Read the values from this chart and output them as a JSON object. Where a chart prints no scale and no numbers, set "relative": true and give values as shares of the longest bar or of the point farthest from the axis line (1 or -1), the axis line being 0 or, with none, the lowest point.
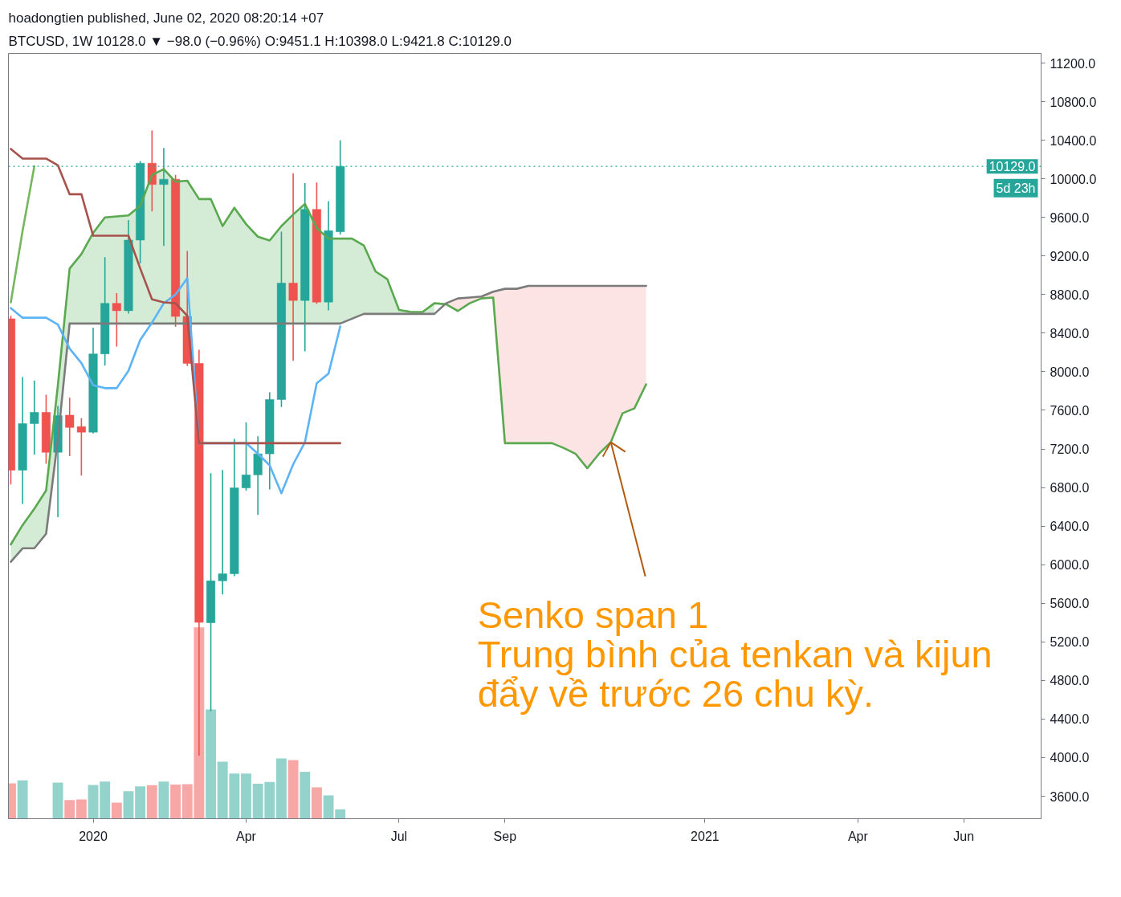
{
  "chart_data": [
    {
      "type": "candlestick",
      "title": "hoadongtien published, June 02, 2020 08:20:14 +07",
      "subtitle": "BTCUSD, 1W  10128.0 ▼ −98.0 (−0.96%) O:9451.1 H:10398.0 L:9421.8 C:10129.0",
      "x": [
        "2019-11-18",
        "2019-11-25",
        "2019-12-02",
        "2019-12-09",
        "2019-12-16",
        "2019-12-23",
        "2019-12-30",
        "2020-01-06",
        "2020-01-13",
        "2020-01-20",
        "2020-01-27",
        "2020-02-03",
        "2020-02-10",
        "2020-02-17",
        "2020-02-24",
        "2020-03-02",
        "2020-03-09",
        "2020-03-16",
        "2020-03-23",
        "2020-03-30",
        "2020-04-06",
        "2020-04-13",
        "2020-04-20",
        "2020-04-27",
        "2020-05-04",
        "2020-05-11",
        "2020-05-18",
        "2020-05-25",
        "2020-06-01"
      ],
      "ohlc": [
        [
          8549,
          8580,
          6832,
          6980
        ],
        [
          6980,
          7945,
          6630,
          7462
        ],
        [
          7462,
          7907,
          7141,
          7579
        ],
        [
          7579,
          7762,
          7046,
          7165
        ],
        [
          7165,
          7646,
          6493,
          7546
        ],
        [
          7550,
          7731,
          7125,
          7422
        ],
        [
          7432,
          7519,
          6923,
          7374
        ],
        [
          7374,
          8457,
          7360,
          8185
        ],
        [
          8185,
          9187,
          8064,
          8709
        ],
        [
          8709,
          8815,
          8262,
          8633
        ],
        [
          8633,
          9572,
          8603,
          9365
        ],
        [
          9365,
          10184,
          9123,
          10162
        ],
        [
          10162,
          10501,
          9663,
          9941
        ],
        [
          9941,
          10319,
          9305,
          9996
        ],
        [
          9996,
          10040,
          8466,
          8573
        ],
        [
          8573,
          9252,
          8059,
          8087
        ],
        [
          8087,
          8229,
          4020,
          5402
        ],
        [
          5398,
          6948,
          4482,
          5833
        ],
        [
          5833,
          6982,
          5691,
          5906
        ],
        [
          5906,
          7304,
          5880,
          6796
        ],
        [
          6796,
          7475,
          6768,
          6931
        ],
        [
          6931,
          7332,
          6517,
          7149
        ],
        [
          7149,
          7787,
          6780,
          7712
        ],
        [
          7712,
          9452,
          7635,
          8919
        ],
        [
          8919,
          10057,
          8113,
          8739
        ],
        [
          8739,
          9955,
          8212,
          9683
        ],
        [
          9683,
          9962,
          8704,
          8722
        ],
        [
          8722,
          9768,
          8637,
          9463
        ],
        [
          9451.1,
          10398.0,
          9421.8,
          10129.0
        ]
      ],
      "colors": [
        "#ef5350",
        "#26a69a",
        "#26a69a",
        "#ef5350",
        "#26a69a",
        "#ef5350",
        "#ef5350",
        "#26a69a",
        "#26a69a",
        "#ef5350",
        "#26a69a",
        "#26a69a",
        "#ef5350",
        "#26a69a",
        "#ef5350",
        "#ef5350",
        "#ef5350",
        "#26a69a",
        "#26a69a",
        "#26a69a",
        "#26a69a",
        "#26a69a",
        "#26a69a",
        "#26a69a",
        "#ef5350",
        "#26a69a",
        "#ef5350",
        "#26a69a",
        "#26a69a"
      ],
      "series": [
        {
          "type": "line",
          "color": "#5aa84f",
          "x": [
            "2019-11-18",
            "2019-11-25",
            "2019-12-02",
            "2019-12-09",
            "2019-12-16",
            "2019-12-23",
            "2019-12-30",
            "2020-01-06",
            "2020-01-13",
            "2020-01-20",
            "2020-01-27",
            "2020-02-03",
            "2020-02-10",
            "2020-02-17",
            "2020-02-24",
            "2020-03-02",
            "2020-03-09",
            "2020-03-16",
            "2020-03-23",
            "2020-03-30",
            "2020-04-06",
            "2020-04-13",
            "2020-04-20",
            "2020-04-27",
            "2020-05-04",
            "2020-05-11",
            "2020-05-18",
            "2020-05-25",
            "2020-06-01",
            "2020-06-08",
            "2020-06-15",
            "2020-06-22",
            "2020-06-29",
            "2020-07-06",
            "2020-07-13",
            "2020-07-20",
            "2020-07-27",
            "2020-08-03",
            "2020-08-10",
            "2020-08-17",
            "2020-08-24",
            "2020-08-31",
            "2020-09-07",
            "2020-09-14",
            "2020-09-21",
            "2020-09-28",
            "2020-10-05",
            "2020-10-12",
            "2020-10-19",
            "2020-10-26",
            "2020-11-02",
            "2020-11-09",
            "2020-11-16",
            "2020-11-23",
            "2020-11-30"
          ],
          "values": [
            6210,
            6410,
            6580,
            6770,
            7860,
            9070,
            9220,
            9440,
            9600,
            9610,
            9620,
            9720,
            10040,
            10100,
            9970,
            9980,
            9790,
            9790,
            9510,
            9700,
            9530,
            9400,
            9360,
            9510,
            9630,
            9740,
            9490,
            9380,
            9380,
            9380,
            9310,
            9040,
            8960,
            8640,
            8620,
            8620,
            8710,
            8700,
            8630,
            8710,
            8760,
            8770,
            7260,
            7260,
            7260,
            7260,
            7260,
            7210,
            7150,
            7000,
            7150,
            7270,
            7570,
            7620,
            7870
          ],
          "lower": [
            6030,
            6170,
            6170,
            6320,
            7300,
            8500,
            8500,
            8500,
            8500,
            8500,
            8500,
            8500,
            8500,
            8500,
            8500,
            8500,
            8500,
            8500,
            8500,
            8500,
            8500,
            8500,
            8500,
            8500,
            8500,
            8500,
            8500,
            8500,
            8500,
            8550,
            8600,
            8600,
            8600,
            8600,
            8600,
            8600,
            8600,
            null,
            null,
            null,
            null,
            null,
            null,
            null,
            null,
            null,
            null,
            null,
            null,
            null,
            null,
            null,
            null,
            null,
            null
          ],
          "upper": [
            6210,
            6410,
            6580,
            6770,
            7860,
            9070,
            9220,
            9440,
            9600,
            9610,
            9620,
            9720,
            10040,
            10100,
            9970,
            9980,
            9790,
            9790,
            9510,
            9700,
            9530,
            9400,
            9360,
            9510,
            9630,
            9740,
            9490,
            9380,
            9380,
            9380,
            9310,
            9040,
            8960,
            8640,
            8620,
            8620,
            8710,
            null,
            null,
            null,
            null,
            null,
            null,
            null,
            null,
            null,
            null,
            null,
            null,
            null,
            null,
            null,
            null,
            null,
            null
          ],
          "colors": [
            "#d4ecd5",
            "#d4ecd5",
            "#d4ecd5",
            "#d4ecd5",
            "#d4ecd5",
            "#d4ecd5",
            "#d4ecd5",
            "#d4ecd5",
            "#d4ecd5",
            "#d4ecd5",
            "#d4ecd5",
            "#d4ecd5",
            "#d4ecd5",
            "#d4ecd5",
            "#d4ecd5",
            "#d4ecd5",
            "#d4ecd5",
            "#d4ecd5",
            "#d4ecd5",
            "#d4ecd5",
            "#d4ecd5",
            "#d4ecd5",
            "#d4ecd5",
            "#d4ecd5",
            "#d4ecd5",
            "#d4ecd5",
            "#d4ecd5",
            "#d4ecd5",
            "#d4ecd5",
            "#d4ecd5",
            "#d4ecd5",
            "#d4ecd5",
            "#d4ecd5",
            "#d4ecd5",
            "#d4ecd5",
            "#d4ecd5",
            "#d4ecd5",
            "#d4ecd5",
            "#d4ecd5",
            "#d4ecd5",
            "#d4ecd5",
            "#d4ecd5",
            "#d4ecd5",
            "#d4ecd5",
            "#d4ecd5",
            "#d4ecd5",
            "#d4ecd5",
            "#d4ecd5",
            "#d4ecd5",
            "#d4ecd5",
            "#d4ecd5",
            "#d4ecd5",
            "#d4ecd5",
            "#d4ecd5",
            "#d4ecd5"
          ]
        },
        {
          "type": "line",
          "color": "#7b7b7b",
          "x": [
            "2019-11-18",
            "2019-11-25",
            "2019-12-02",
            "2019-12-09",
            "2019-12-16",
            "2019-12-23",
            "2019-12-30",
            "2020-01-06",
            "2020-01-13",
            "2020-01-20",
            "2020-01-27",
            "2020-02-03",
            "2020-02-10",
            "2020-02-17",
            "2020-02-24",
            "2020-03-02",
            "2020-03-09",
            "2020-03-16",
            "2020-03-23",
            "2020-03-30",
            "2020-04-06",
            "2020-04-13",
            "2020-04-20",
            "2020-04-27",
            "2020-05-04",
            "2020-05-11",
            "2020-05-18",
            "2020-05-25",
            "2020-06-01",
            "2020-06-08",
            "2020-06-15",
            "2020-06-22",
            "2020-06-29",
            "2020-07-06",
            "2020-07-13",
            "2020-07-20",
            "2020-07-27",
            "2020-08-03",
            "2020-08-10",
            "2020-08-17",
            "2020-08-24",
            "2020-08-31",
            "2020-09-07",
            "2020-09-14",
            "2020-09-21",
            "2020-09-28",
            "2020-10-05",
            "2020-10-12",
            "2020-10-19",
            "2020-10-26",
            "2020-11-02",
            "2020-11-09",
            "2020-11-16",
            "2020-11-23",
            "2020-11-30"
          ],
          "values": [
            6030,
            6170,
            6170,
            6320,
            7300,
            8500,
            8500,
            8500,
            8500,
            8500,
            8500,
            8500,
            8500,
            8500,
            8500,
            8500,
            8500,
            8500,
            8500,
            8500,
            8500,
            8500,
            8500,
            8500,
            8500,
            8500,
            8500,
            8500,
            8500,
            8550,
            8600,
            8600,
            8600,
            8600,
            8600,
            8600,
            8600,
            8710,
            8760,
            8770,
            8780,
            8830,
            8860,
            8860,
            8890,
            8890,
            8890,
            8890,
            8890,
            8890,
            8890,
            8890,
            8890,
            8890,
            8890
          ],
          "lower": [
            null,
            null,
            null,
            null,
            null,
            null,
            null,
            null,
            null,
            null,
            null,
            null,
            null,
            null,
            null,
            null,
            null,
            null,
            null,
            null,
            null,
            null,
            null,
            null,
            null,
            null,
            null,
            null,
            null,
            null,
            null,
            null,
            null,
            null,
            null,
            null,
            null,
            8700,
            8630,
            8710,
            8760,
            8770,
            7260,
            7260,
            7260,
            7260,
            7260,
            7210,
            7150,
            7000,
            7150,
            7270,
            7570,
            7620,
            7870
          ],
          "upper": [
            null,
            null,
            null,
            null,
            null,
            null,
            null,
            null,
            null,
            null,
            null,
            null,
            null,
            null,
            null,
            null,
            null,
            null,
            null,
            null,
            null,
            null,
            null,
            null,
            null,
            null,
            null,
            null,
            null,
            null,
            null,
            null,
            null,
            null,
            null,
            null,
            null,
            8710,
            8760,
            8770,
            8780,
            8830,
            8860,
            8860,
            8890,
            8890,
            8890,
            8890,
            8890,
            8890,
            8890,
            8890,
            8890,
            8890,
            8890
          ],
          "colors": [
            "#fde4e4",
            "#fde4e4",
            "#fde4e4",
            "#fde4e4",
            "#fde4e4",
            "#fde4e4",
            "#fde4e4",
            "#fde4e4",
            "#fde4e4",
            "#fde4e4",
            "#fde4e4",
            "#fde4e4",
            "#fde4e4",
            "#fde4e4",
            "#fde4e4",
            "#fde4e4",
            "#fde4e4",
            "#fde4e4",
            "#fde4e4",
            "#fde4e4",
            "#fde4e4",
            "#fde4e4",
            "#fde4e4",
            "#fde4e4",
            "#fde4e4",
            "#fde4e4",
            "#fde4e4",
            "#fde4e4",
            "#fde4e4",
            "#fde4e4",
            "#fde4e4",
            "#fde4e4",
            "#fde4e4",
            "#fde4e4",
            "#fde4e4",
            "#fde4e4",
            "#fde4e4",
            "#fde4e4",
            "#fde4e4",
            "#fde4e4",
            "#fde4e4",
            "#fde4e4",
            "#fde4e4",
            "#fde4e4",
            "#fde4e4",
            "#fde4e4",
            "#fde4e4",
            "#fde4e4",
            "#fde4e4",
            "#fde4e4",
            "#fde4e4",
            "#fde4e4",
            "#fde4e4",
            "#fde4e4",
            "#fde4e4"
          ]
        },
        {
          "type": "line",
          "color": "#74b85b",
          "x": [
            "2019-11-18",
            "2019-11-25",
            "2019-12-02"
          ],
          "values": [
            8720,
            9460,
            10130
          ]
        },
        {
          "type": "line",
          "color": "#5cb3f6",
          "values": [
            8660,
            8560,
            8560,
            8560,
            8490,
            8240,
            8090,
            7860,
            7830,
            7830,
            8010,
            8330,
            8510,
            8710,
            8800,
            8970,
            7260,
            7260,
            7260,
            7260,
            7260,
            7150,
            7030,
            6740,
            7040,
            7270,
            7880,
            7980,
            8470
          ]
        },
        {
          "type": "line",
          "color": "#a8524c",
          "values": [
            10310,
            10210,
            10210,
            10210,
            10140,
            9840,
            9840,
            9410,
            9410,
            9410,
            9410,
            9070,
            8750,
            8720,
            8710,
            8580,
            7260,
            7260,
            7260,
            7260,
            7260,
            7260,
            7260,
            7260,
            7260,
            7260,
            7260,
            7260,
            7260
          ]
        }
      ],
      "xlim": [
        "2019-11-16T14:00",
        "2021-07-23"
      ],
      "xticks": [
        {
          "value": "2020-01-06",
          "label": "2020"
        },
        {
          "value": "2020-04-06",
          "label": "Apr"
        },
        {
          "value": "2020-07-06",
          "label": "Jul"
        },
        {
          "value": "2020-09-07",
          "label": "Sep"
        },
        {
          "value": "2021-01-04",
          "label": "2021"
        },
        {
          "value": "2021-04-05",
          "label": "Apr"
        },
        {
          "value": "2021-06-07",
          "label": "Jun"
        }
      ],
      "ylim": [
        3367,
        11300
      ],
      "yticks": [
        {
          "value": 3600,
          "label": "3600.0"
        },
        {
          "value": 4000,
          "label": "4000.0"
        },
        {
          "value": 4400,
          "label": "4400.0"
        },
        {
          "value": 4800,
          "label": "4800.0"
        },
        {
          "value": 5200,
          "label": "5200.0"
        },
        {
          "value": 5600,
          "label": "5600.0"
        },
        {
          "value": 6000,
          "label": "6000.0"
        },
        {
          "value": 6400,
          "label": "6400.0"
        },
        {
          "value": 6800,
          "label": "6800.0"
        },
        {
          "value": 7200,
          "label": "7200.0"
        },
        {
          "value": 7600,
          "label": "7600.0"
        },
        {
          "value": 8000,
          "label": "8000.0"
        },
        {
          "value": 8400,
          "label": "8400.0"
        },
        {
          "value": 8800,
          "label": "8800.0"
        },
        {
          "value": 9200,
          "label": "9200.0"
        },
        {
          "value": 9600,
          "label": "9600.0"
        },
        {
          "value": 10000,
          "label": "10000.0"
        },
        {
          "value": 10400,
          "label": "10400.0"
        },
        {
          "value": 10800,
          "label": "10800.0"
        },
        {
          "value": 11200,
          "label": "11200.0"
        }
      ],
      "ref_lines": [
        {
          "axis": "y",
          "value": 10129.0,
          "label": "10129.0",
          "color": "#26a69a",
          "line_style": "dotted"
        }
      ],
      "annotations": [
        {
          "text": "Senko span 1\nTrung bình của tenkan và kijun\nđẩy về trước 26 chu kỳ.",
          "x": "2020-11-09",
          "y": 7270
        },
        "5d 23h"
      ]
    },
    {
      "type": "bar",
      "relative": true,
      "tick_labels": false,
      "x": [
        "2019-11-18",
        "2019-11-25",
        "2019-12-02",
        "2019-12-09",
        "2019-12-16",
        "2019-12-23",
        "2019-12-30",
        "2020-01-06",
        "2020-01-13",
        "2020-01-20",
        "2020-01-27",
        "2020-02-03",
        "2020-02-10",
        "2020-02-17",
        "2020-02-24",
        "2020-03-02",
        "2020-03-09",
        "2020-03-16",
        "2020-03-23",
        "2020-03-30",
        "2020-04-06",
        "2020-04-13",
        "2020-04-20",
        "2020-04-27",
        "2020-05-04",
        "2020-05-11",
        "2020-05-18",
        "2020-05-25",
        "2020-06-01"
      ],
      "xlim": [
        "2019-11-16T14:00",
        "2021-07-23"
      ],
      "values": [
        0.185,
        0.2,
        null,
        null,
        0.189,
        0.098,
        0.101,
        0.176,
        0.194,
        0.084,
        0.144,
        0.169,
        0.175,
        0.194,
        0.178,
        0.18,
        1,
        0.571,
        0.298,
        0.236,
        0.236,
        0.183,
        0.192,
        0.315,
        0.306,
        0.245,
        0.164,
        0.122,
        0.049
      ],
      "colors": [
        "#f6a7a6",
        "#93d3cc",
        "#93d3cc",
        "#f6a7a6",
        "#93d3cc",
        "#f6a7a6",
        "#f6a7a6",
        "#93d3cc",
        "#93d3cc",
        "#f6a7a6",
        "#93d3cc",
        "#93d3cc",
        "#f6a7a6",
        "#93d3cc",
        "#f6a7a6",
        "#f6a7a6",
        "#f6a7a6",
        "#93d3cc",
        "#93d3cc",
        "#93d3cc",
        "#93d3cc",
        "#93d3cc",
        "#93d3cc",
        "#93d3cc",
        "#f6a7a6",
        "#93d3cc",
        "#f6a7a6",
        "#93d3cc",
        "#93d3cc"
      ]
    }
  ]
}
